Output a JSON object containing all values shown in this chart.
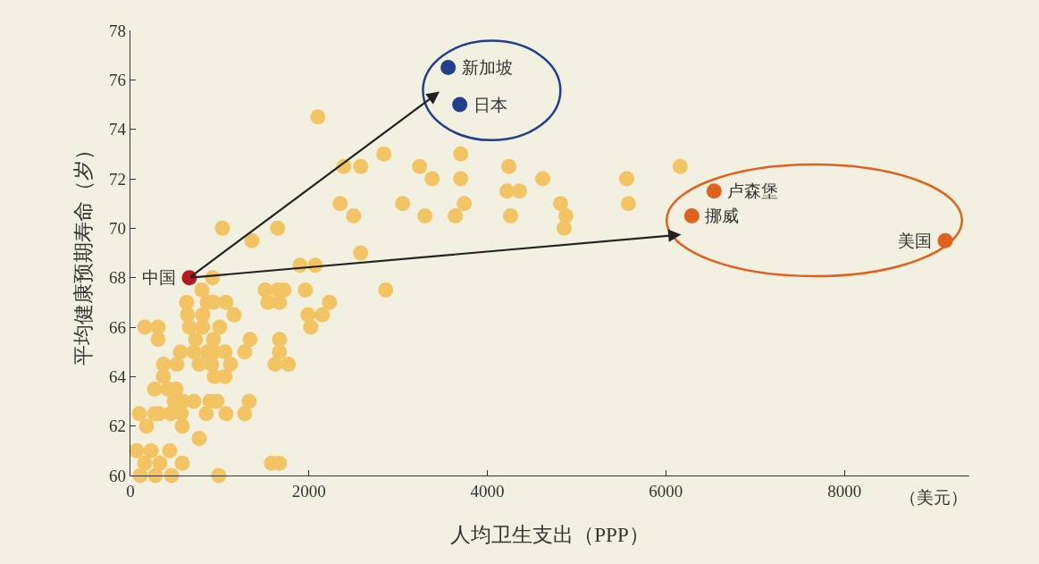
{
  "chart_data": {
    "type": "scatter",
    "xlabel": "人均卫生支出（PPP）",
    "ylabel": "平均健康预期寿命（岁）",
    "xlim": [
      0,
      9400
    ],
    "xticks": [
      0,
      2000,
      4000,
      6000,
      8000
    ],
    "ylim": [
      60,
      78
    ],
    "yticks": [
      60,
      62,
      64,
      66,
      68,
      70,
      72,
      74,
      76,
      78
    ],
    "grid": false,
    "marker": "circle",
    "series": [
      {
        "color": "#f2c464",
        "x": [
          2100,
          2390,
          2580,
          2840,
          3240,
          3380,
          3700,
          3700,
          4240,
          4220,
          4360,
          4620,
          4820,
          4880,
          4860,
          5560,
          5580,
          6160,
          2350,
          2500,
          3050,
          3300,
          3740,
          3640,
          4260,
          2580,
          2860,
          1030,
          1360,
          1650,
          1900,
          2070,
          1510,
          1650,
          1720,
          1960,
          1540,
          1670,
          2230,
          2150,
          1990,
          2020,
          1670,
          1670,
          1340,
          1280,
          1620,
          1770,
          1330,
          1280,
          1580,
          1670,
          990,
          920,
          800,
          630,
          860,
          930,
          1070,
          1160,
          640,
          810,
          660,
          810,
          1000,
          160,
          310,
          310,
          730,
          930,
          560,
          710,
          860,
          940,
          1060,
          370,
          520,
          770,
          910,
          1120,
          370,
          940,
          1060,
          270,
          420,
          510,
          490,
          590,
          710,
          890,
          970,
          100,
          270,
          320,
          450,
          570,
          850,
          1070,
          180,
          580,
          770,
          70,
          230,
          440,
          160,
          330,
          580,
          110,
          280,
          460
        ],
        "values": [
          74.5,
          72.5,
          72.5,
          73,
          72.5,
          72,
          73,
          72,
          72.5,
          71.5,
          71.5,
          72,
          71,
          70.5,
          70,
          72,
          71,
          72.5,
          71,
          70.5,
          71,
          70.5,
          71,
          70.5,
          70.5,
          69,
          67.5,
          70,
          69.5,
          70,
          68.5,
          68.5,
          67.5,
          67.5,
          67.5,
          67.5,
          67,
          67,
          67,
          66.5,
          66.5,
          66,
          65.5,
          65,
          65.5,
          65,
          64.5,
          64.5,
          63,
          62.5,
          60.5,
          60.5,
          60,
          68,
          67.5,
          67,
          67,
          67,
          67,
          66.5,
          66.5,
          66.5,
          66,
          66,
          66,
          66,
          66,
          65.5,
          65.5,
          65.5,
          65,
          65,
          65,
          65,
          65,
          64.5,
          64.5,
          64.5,
          64.5,
          64.5,
          64,
          64,
          64,
          63.5,
          63.5,
          63.5,
          63,
          63,
          63,
          63,
          63,
          62.5,
          62.5,
          62.5,
          62.5,
          62.5,
          62.5,
          62.5,
          62,
          62,
          61.5,
          61,
          61,
          61,
          60.5,
          60.5,
          60.5,
          60,
          60,
          60
        ]
      },
      {
        "color": "#b5191f",
        "x": [
          660
        ],
        "values": [
          68
        ]
      },
      {
        "color": "#233e8b",
        "x": [
          3560,
          3690
        ],
        "values": [
          76.5,
          75
        ]
      },
      {
        "color": "#e0611e",
        "x": [
          6540,
          6290,
          9130
        ],
        "values": [
          71.5,
          70.5,
          69.5
        ]
      }
    ],
    "annotations": [
      {
        "text": "中国",
        "x": 660,
        "y": 68
      },
      {
        "text": "新加坡",
        "x": 3560,
        "y": 76.5
      },
      {
        "text": "日本",
        "x": 3690,
        "y": 75
      },
      {
        "text": "卢森堡",
        "x": 6540,
        "y": 71.5
      },
      {
        "text": "挪威",
        "x": 6290,
        "y": 70.5
      },
      {
        "text": "美国",
        "x": 9130,
        "y": 69.5
      },
      "（美元）"
    ]
  }
}
